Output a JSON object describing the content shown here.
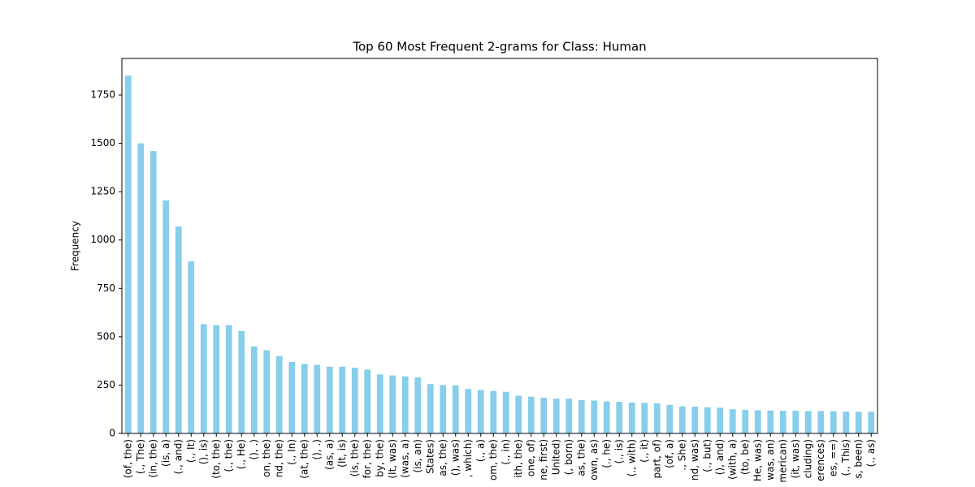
{
  "chart_data": {
    "type": "bar",
    "title": "Top 60 Most Frequent 2-grams for Class: Human",
    "y_label": "Frequency",
    "categories": [
      "(of, the)",
      "(., The)",
      "(in, the)",
      "(is, a)",
      "(., and)",
      "(., It)",
      "(), is)",
      "(to, the)",
      "(., the)",
      "(., He)",
      "(), .)",
      "on, the)",
      "nd, the)",
      "(., In)",
      "(at, the)",
      "(), .)",
      "(as, a)",
      "(It, is)",
      "(is, the)",
      "for, the)",
      "by, the)",
      "(It, was)",
      "(was, a)",
      "(is, an)",
      "States)",
      "as, the)",
      "(), was)",
      ", which)",
      "(., a)",
      "om, the)",
      "(., in)",
      "ith, the)",
      "one, of)",
      "ne, first)",
      "United)",
      "(, born)",
      "as, the)",
      "own, as)",
      "(., he)",
      "(., is)",
      "(., with)",
      "(., it)",
      "part, of)",
      "(of, a)",
      "., She)",
      "nd, was)",
      "(., but)",
      "(), and)",
      "(with, a)",
      "(to, be)",
      "He, was)",
      "was, an)",
      "merican)",
      "(it, was)",
      "cluding)",
      "erences)",
      "es, ==)",
      "(., This)",
      "s, been)",
      "(., as)"
    ],
    "values": [
      1850,
      1500,
      1460,
      1205,
      1070,
      890,
      565,
      560,
      560,
      530,
      450,
      430,
      400,
      370,
      360,
      355,
      345,
      345,
      340,
      330,
      305,
      300,
      295,
      290,
      255,
      250,
      248,
      230,
      225,
      220,
      215,
      195,
      190,
      185,
      180,
      180,
      172,
      170,
      165,
      163,
      160,
      158,
      155,
      148,
      140,
      138,
      135,
      133,
      125,
      122,
      120,
      118,
      117,
      117,
      116,
      116,
      115,
      113,
      112,
      112
    ],
    "color": "#87ceeb",
    "ylim": [
      0,
      1939
    ],
    "yticks": [
      0,
      250,
      500,
      750,
      1000,
      1250,
      1500,
      1750
    ],
    "grid": false
  }
}
